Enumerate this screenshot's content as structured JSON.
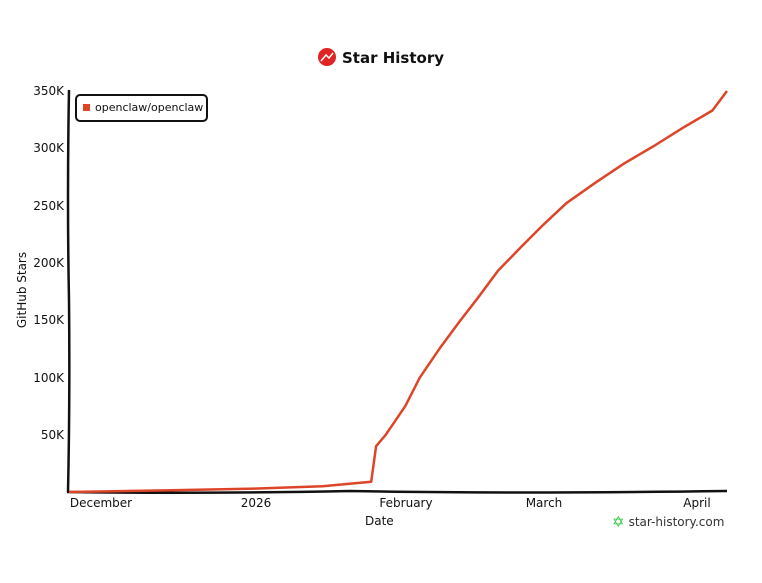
{
  "header": {
    "title": "Star History",
    "logo_icon": "star-history-logo-icon"
  },
  "legend": {
    "items": [
      {
        "label": "openclaw/openclaw",
        "color": "#dd4528"
      }
    ]
  },
  "axes": {
    "y_label": "GitHub Stars",
    "y_ticks": [
      "350K",
      "300K",
      "250K",
      "200K",
      "150K",
      "100K",
      "50K"
    ],
    "x_label": "Date",
    "x_ticks": [
      "December",
      "2026",
      "February",
      "March",
      "April"
    ]
  },
  "footer": {
    "brand": "star-history.com",
    "brand_color": "#29c23a"
  },
  "chart_data": {
    "type": "line",
    "title": "Star History",
    "xlabel": "Date",
    "ylabel": "GitHub Stars",
    "ylim": [
      0,
      350000
    ],
    "x_tick_labels": [
      "December",
      "2026",
      "February",
      "March",
      "April"
    ],
    "y_tick_labels": [
      "50K",
      "100K",
      "150K",
      "200K",
      "250K",
      "300K",
      "350K"
    ],
    "legend_position": "top-left",
    "grid": false,
    "series": [
      {
        "name": "openclaw/openclaw",
        "color": "#dd4528",
        "x": [
          "2025-11-24",
          "2025-12-15",
          "2026-01-01",
          "2026-01-15",
          "2026-01-25",
          "2026-01-26",
          "2026-01-28",
          "2026-02-01",
          "2026-02-04",
          "2026-02-08",
          "2026-02-12",
          "2026-02-16",
          "2026-02-20",
          "2026-02-25",
          "2026-03-01",
          "2026-03-06",
          "2026-03-12",
          "2026-03-18",
          "2026-03-24",
          "2026-03-30",
          "2026-04-05",
          "2026-04-08"
        ],
        "values": [
          0,
          1500,
          3000,
          5000,
          9000,
          40000,
          50000,
          75000,
          100000,
          125000,
          148000,
          170000,
          193000,
          215000,
          232000,
          252000,
          270000,
          287000,
          302000,
          318000,
          333000,
          350000
        ]
      }
    ]
  }
}
